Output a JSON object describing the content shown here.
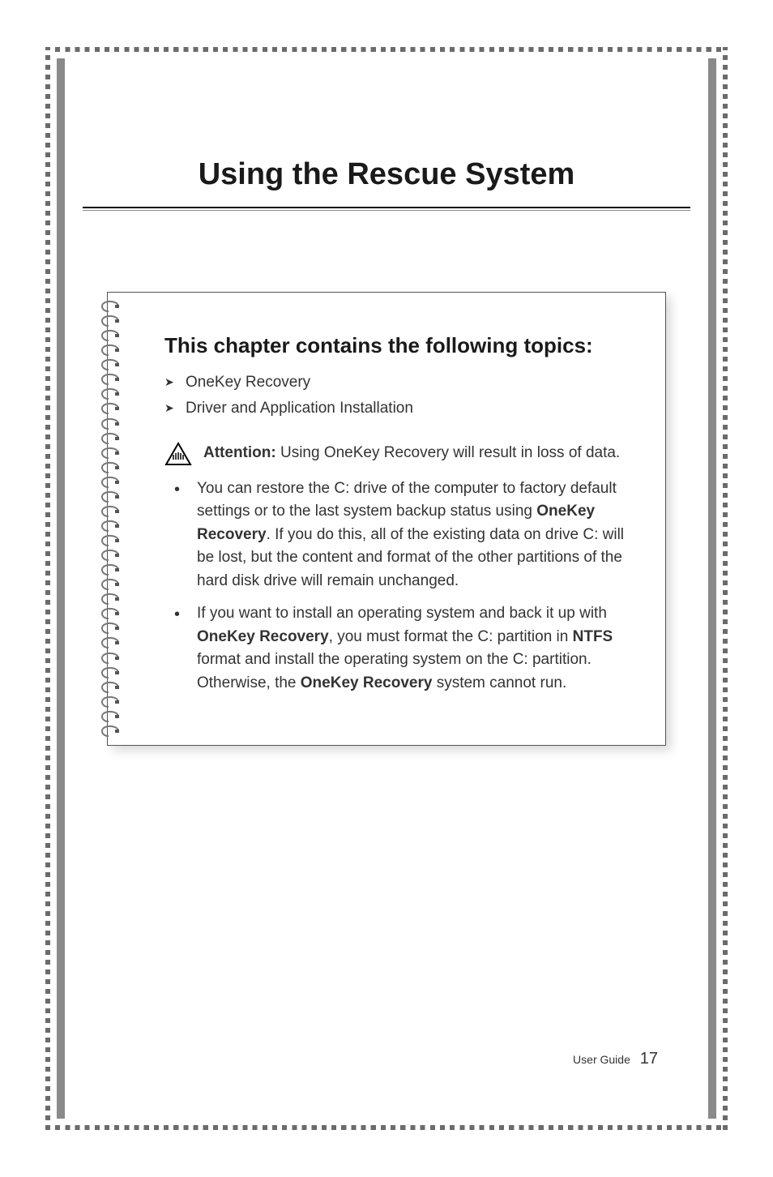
{
  "chapter": {
    "title": "Using the Rescue System"
  },
  "notebox": {
    "heading": "This chapter contains the following topics:",
    "topics": [
      "OneKey Recovery",
      "Driver and Application Installation"
    ],
    "attention_label": "Attention:",
    "attention_text": " Using OneKey Recovery will result in loss of data.",
    "bullets": [
      {
        "pre": "You can restore the C: drive of the computer to factory default settings or to the last system backup status using ",
        "bold1": "OneKey Recovery",
        "post1": ". If you do this, all of the existing data on drive C: will be lost, but the content and format of the other partitions of the hard disk drive will remain unchanged."
      },
      {
        "pre": "If you want to install an operating system and back it up with ",
        "bold1": "OneKey Recovery",
        "mid1": ", you must format the C: partition in ",
        "bold2": "NTFS",
        "mid2": " format and install the operating system on the C: partition. Otherwise, the ",
        "bold3": "OneKey Recovery",
        "post1": " system cannot run."
      }
    ]
  },
  "footer": {
    "label": "User Guide",
    "page": "17"
  },
  "colors": {
    "frame_dash": "#6b6b6b",
    "inner_band": "#8a8a8a",
    "text": "#333333",
    "heading": "#1a1a1a"
  },
  "spiral": {
    "count": 30
  }
}
